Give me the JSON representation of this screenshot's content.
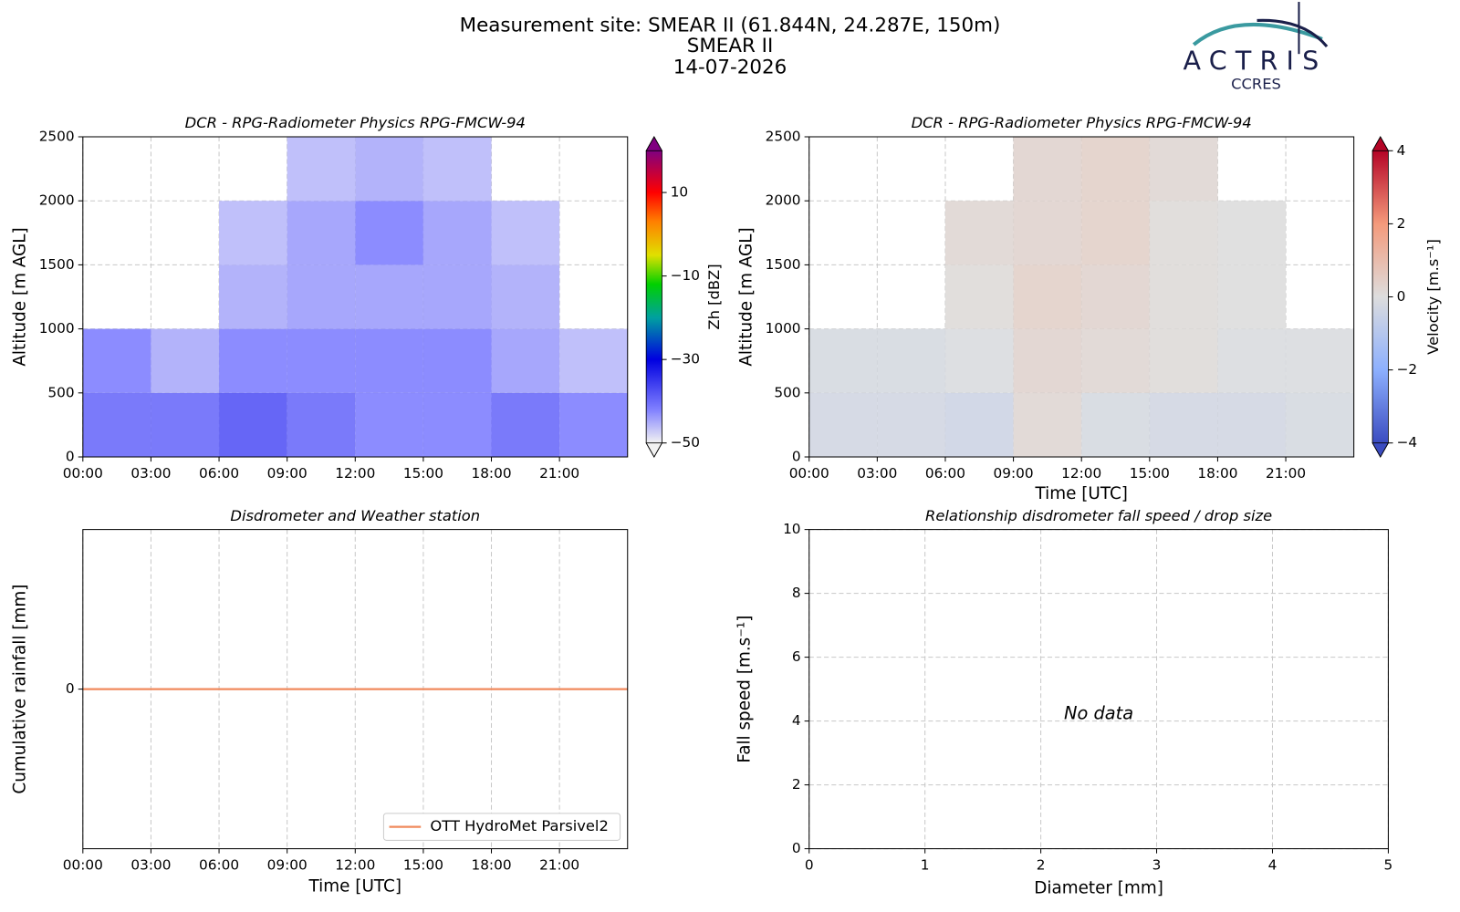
{
  "header": {
    "title": "Measurement site: SMEAR II (61.844N, 24.287E, 150m)",
    "site": "SMEAR II",
    "date": "14-07-2026"
  },
  "logo": {
    "name": "ACTRIS",
    "sub": "CCRES"
  },
  "chart_data": [
    {
      "type": "heatmap",
      "title": "DCR - RPG-Radiometer Physics RPG-FMCW-94",
      "ylabel": "Altitude [m AGL]",
      "xlim": [
        0,
        24
      ],
      "xticks": [
        {
          "value": 0,
          "label": "00:00"
        },
        {
          "value": 3,
          "label": "03:00"
        },
        {
          "value": 6,
          "label": "06:00"
        },
        {
          "value": 9,
          "label": "09:00"
        },
        {
          "value": 12,
          "label": "12:00"
        },
        {
          "value": 15,
          "label": "15:00"
        },
        {
          "value": 18,
          "label": "18:00"
        },
        {
          "value": 21,
          "label": "21:00"
        }
      ],
      "ylim": [
        0,
        2500
      ],
      "yticks": [
        0,
        500,
        1000,
        1500,
        2000,
        2500
      ],
      "grid": true,
      "x_edges": [
        0,
        3,
        6,
        9,
        12,
        15,
        18,
        21,
        24
      ],
      "y_edges": [
        0,
        500,
        1000,
        1500,
        2000,
        2500
      ],
      "z": [
        [
          -40,
          -40,
          -38,
          -40,
          -42,
          -42,
          -40,
          -42
        ],
        [
          -42,
          -45,
          -42,
          -42,
          -42,
          -42,
          -44,
          -46
        ],
        [
          null,
          null,
          -45,
          -44,
          -44,
          -44,
          -45,
          null
        ],
        [
          null,
          null,
          -46,
          -44,
          -42,
          -44,
          -46,
          null
        ],
        [
          null,
          null,
          null,
          -46,
          -45,
          -46,
          null,
          null
        ]
      ],
      "clabel": "Zh [dBZ]",
      "clim": [
        -50,
        20
      ],
      "cticks": [
        {
          "value": -50,
          "label": "−50"
        },
        {
          "value": -30,
          "label": "−30"
        },
        {
          "value": -10,
          "label": "−10"
        },
        10
      ],
      "cmap": [
        [
          -50,
          "#f2f2f2"
        ],
        [
          -42,
          "#8080ff"
        ],
        [
          -30,
          "#0000e0"
        ],
        [
          -20,
          "#00a0a0"
        ],
        [
          -12,
          "#00d000"
        ],
        [
          -5,
          "#e0e000"
        ],
        [
          3,
          "#ff8000"
        ],
        [
          10,
          "#ff0000"
        ],
        [
          20,
          "#800080"
        ]
      ]
    },
    {
      "type": "heatmap",
      "title": "DCR - RPG-Radiometer Physics RPG-FMCW-94",
      "ylabel": "Altitude [m AGL]",
      "xlabel": "Time [UTC]",
      "xlim": [
        0,
        24
      ],
      "xticks": [
        {
          "value": 0,
          "label": "00:00"
        },
        {
          "value": 3,
          "label": "03:00"
        },
        {
          "value": 6,
          "label": "06:00"
        },
        {
          "value": 9,
          "label": "09:00"
        },
        {
          "value": 12,
          "label": "12:00"
        },
        {
          "value": 15,
          "label": "15:00"
        },
        {
          "value": 18,
          "label": "18:00"
        },
        {
          "value": 21,
          "label": "21:00"
        }
      ],
      "ylim": [
        0,
        2500
      ],
      "yticks": [
        0,
        500,
        1000,
        1500,
        2000,
        2500
      ],
      "grid": true,
      "x_edges": [
        0,
        3,
        6,
        9,
        12,
        15,
        18,
        21,
        24
      ],
      "y_edges": [
        0,
        500,
        1000,
        1500,
        2000,
        2500
      ],
      "z": [
        [
          -0.3,
          -0.3,
          -0.4,
          0.2,
          -0.2,
          -0.3,
          -0.3,
          -0.2
        ],
        [
          -0.2,
          -0.2,
          -0.1,
          0.3,
          0.2,
          0.1,
          -0.1,
          -0.1
        ],
        [
          null,
          null,
          0.1,
          0.4,
          0.3,
          0.1,
          0,
          null
        ],
        [
          null,
          null,
          0.2,
          0.3,
          0.4,
          0.1,
          0,
          null
        ],
        [
          null,
          null,
          null,
          0.3,
          0.4,
          0.2,
          null,
          null
        ]
      ],
      "clabel": "Velocity [m.s⁻¹]",
      "clim": [
        -4,
        4
      ],
      "cticks": [
        {
          "value": -4,
          "label": "−4"
        },
        {
          "value": -2,
          "label": "−2"
        },
        0,
        2,
        4
      ],
      "cmap": [
        [
          -4,
          "#3b4cc0"
        ],
        [
          -2,
          "#8db0fe"
        ],
        [
          0,
          "#dddddd"
        ],
        [
          2,
          "#f49a7b"
        ],
        [
          4,
          "#b40426"
        ]
      ]
    },
    {
      "type": "line",
      "title": "Disdrometer and Weather station",
      "ylabel": "Cumulative rainfall [mm]",
      "xlabel": "Time [UTC]",
      "xlim": [
        0,
        24
      ],
      "xticks": [
        {
          "value": 0,
          "label": "00:00"
        },
        {
          "value": 3,
          "label": "03:00"
        },
        {
          "value": 6,
          "label": "06:00"
        },
        {
          "value": 9,
          "label": "09:00"
        },
        {
          "value": 12,
          "label": "12:00"
        },
        {
          "value": 15,
          "label": "15:00"
        },
        {
          "value": 18,
          "label": "18:00"
        },
        {
          "value": 21,
          "label": "21:00"
        }
      ],
      "ylim": [
        -0.055,
        0.055
      ],
      "yticks": [
        0
      ],
      "grid": true,
      "legend": "lower-right",
      "x": [
        0,
        24
      ],
      "series": [
        {
          "name": "OTT HydroMet Parsivel2",
          "color": "#f08a5d",
          "values": [
            0,
            0
          ]
        }
      ]
    },
    {
      "type": "scatter",
      "title": "Relationship disdrometer fall speed / drop size",
      "ylabel": "Fall speed [m.s⁻¹]",
      "xlabel": "Diameter [mm]",
      "xlim": [
        0,
        5
      ],
      "xticks": [
        0,
        1,
        2,
        3,
        4,
        5
      ],
      "ylim": [
        0,
        10
      ],
      "yticks": [
        0,
        2,
        4,
        6,
        8,
        10
      ],
      "grid": true,
      "x": [],
      "values": [],
      "annotation": "No data"
    }
  ]
}
